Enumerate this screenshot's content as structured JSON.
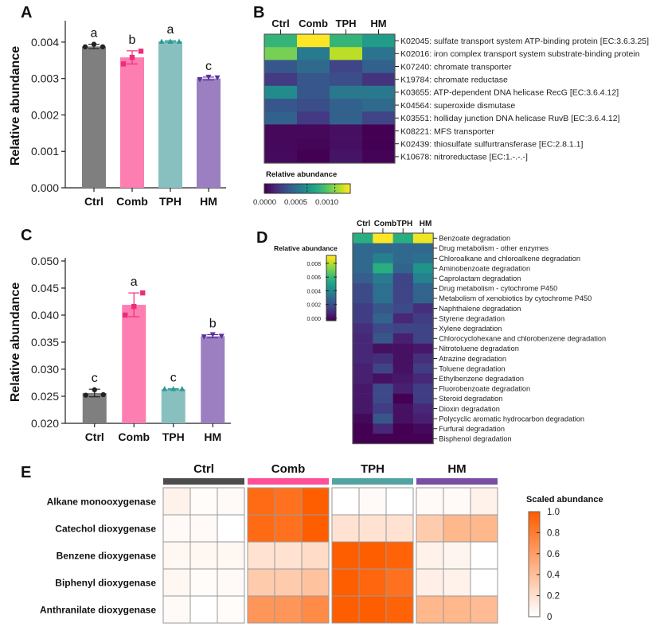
{
  "chart_data": [
    {
      "panel": "A",
      "type": "bar",
      "ylabel": "Relative abundance",
      "xlabel": "",
      "ylim": [
        0,
        0.0045
      ],
      "yticks": [
        "0.000",
        "0.001",
        "0.002",
        "0.003",
        "0.004"
      ],
      "ytick_values": [
        0,
        0.001,
        0.002,
        0.003,
        0.004
      ],
      "categories": [
        "Ctrl",
        "Comb",
        "TPH",
        "HM"
      ],
      "values": [
        0.00388,
        0.00358,
        0.00402,
        0.003
      ],
      "error": [
        6e-05,
        0.00018,
        2e-05,
        4e-05
      ],
      "points": [
        [
          0.00387,
          0.00394,
          0.00387
        ],
        [
          0.0034,
          0.00358,
          0.00375
        ],
        [
          0.00402,
          0.00402,
          0.00402
        ],
        [
          0.00297,
          0.00304,
          0.00302
        ]
      ],
      "letters": [
        "a",
        "b",
        "a",
        "c"
      ],
      "colors": [
        "#7f7f7f",
        "#fd7eb0",
        "#88c0c0",
        "#9b7fc0"
      ],
      "marker_colors": [
        "#222222",
        "#ef2c7c",
        "#2e9a95",
        "#5b2f9e"
      ],
      "markers": [
        "circle",
        "square",
        "triangle-up",
        "triangle-down"
      ],
      "grid": false
    },
    {
      "panel": "B",
      "type": "heatmap",
      "columns": [
        "Ctrl",
        "Comb",
        "TPH",
        "HM"
      ],
      "rows": [
        "K02045: sulfate transport system ATP-binding protein [EC:3.6.3.25]",
        "K02016: iron complex transport system substrate-binding protein",
        "K07240: chromate transporter",
        "K19784: chromate reductase",
        "K03655: ATP-dependent DNA helicase RecG [EC:3.6.4.12]",
        "K04564: superoxide dismutase",
        "K03551: holliday junction DNA helicase RuvB [EC:3.6.4.12]",
        "K08221: MFS transporter",
        "K02439: thiosulfate sulfurtransferase [EC:2.8.1.1]",
        "K10678: nitroreductase [EC:1.-.-.-]"
      ],
      "values": [
        [
          0.00095,
          0.00145,
          0.00095,
          0.0008
        ],
        [
          0.00115,
          0.0006,
          0.0013,
          0.00055
        ],
        [
          0.0004,
          0.0005,
          0.0003,
          0.00045
        ],
        [
          0.00025,
          0.0004,
          0.00035,
          0.00022
        ],
        [
          0.0007,
          0.0004,
          0.00058,
          0.00058
        ],
        [
          0.0004,
          0.00035,
          0.00045,
          0.0005
        ],
        [
          0.00045,
          0.00025,
          0.00045,
          0.0003
        ],
        [
          3e-05,
          3e-05,
          6e-05,
          0.0
        ],
        [
          3e-05,
          2e-05,
          6e-05,
          0.0
        ],
        [
          4e-05,
          0.0,
          8e-05,
          1e-05
        ]
      ],
      "colorbar": {
        "title": "Relative abundance",
        "range": [
          0,
          0.00145
        ],
        "ticks": [
          "0.0000",
          "0.0005",
          "0.0010"
        ],
        "tick_values": [
          0,
          0.0005,
          0.001
        ],
        "colormap": "viridis",
        "orientation": "horizontal"
      }
    },
    {
      "panel": "C",
      "type": "bar",
      "ylabel": "Relative abundance",
      "xlabel": "",
      "ylim": [
        0.02,
        0.05
      ],
      "yticks": [
        "0.020",
        "0.025",
        "0.030",
        "0.035",
        "0.040",
        "0.045",
        "0.050"
      ],
      "ytick_values": [
        0.02,
        0.025,
        0.03,
        0.035,
        0.04,
        0.045,
        0.05
      ],
      "categories": [
        "Ctrl",
        "Comb",
        "TPH",
        "HM"
      ],
      "values": [
        0.0256,
        0.0419,
        0.0263,
        0.0361
      ],
      "error": [
        0.0007,
        0.0022,
        0.0001,
        0.0003
      ],
      "points": [
        [
          0.0252,
          0.0262,
          0.0253
        ],
        [
          0.04,
          0.0416,
          0.0441
        ],
        [
          0.0264,
          0.0264,
          0.0264
        ],
        [
          0.036,
          0.0364,
          0.0361
        ]
      ],
      "letters": [
        "c",
        "a",
        "c",
        "b"
      ],
      "colors": [
        "#7f7f7f",
        "#fd7eb0",
        "#88c0c0",
        "#9b7fc0"
      ],
      "marker_colors": [
        "#222222",
        "#ef2c7c",
        "#2e9a95",
        "#5b2f9e"
      ],
      "markers": [
        "circle",
        "square",
        "triangle-up",
        "triangle-down"
      ],
      "grid": false
    },
    {
      "panel": "D",
      "type": "heatmap",
      "columns": [
        "Ctrl",
        "Comb",
        "TPH",
        "HM"
      ],
      "rows": [
        "Benzoate degradation",
        "Drug metabolism - other enzymes",
        "Chloroalkane and chloroalkene degradation",
        "Aminobenzoate degradation",
        "Caprolactam degradation",
        "Drug metabolism - cytochrome P450",
        "Metabolism of xenobiotics by cytochrome P450",
        "Naphthalene degradation",
        "Styrene degradation",
        "Xylene degradation",
        "Chlorocyclohexane and chlorobenzene degradation",
        "Nitrotoluene degradation",
        "Atrazine degradation",
        "Toluene degradation",
        "Ethylbenzene degradation",
        "Fluorobenzoate degradation",
        "Steroid degradation",
        "Dioxin degradation",
        "Polycyclic aromatic hydrocarbon degradation",
        "Furfural degradation",
        "Bisphenol degradation"
      ],
      "values": [
        [
          0.0055,
          0.0088,
          0.0055,
          0.0086
        ],
        [
          0.003,
          0.003,
          0.003,
          0.003
        ],
        [
          0.003,
          0.0038,
          0.003,
          0.0032
        ],
        [
          0.003,
          0.0055,
          0.0028,
          0.0045
        ],
        [
          0.0026,
          0.0036,
          0.0018,
          0.0038
        ],
        [
          0.002,
          0.0032,
          0.0018,
          0.0028
        ],
        [
          0.002,
          0.0032,
          0.0018,
          0.0028
        ],
        [
          0.0016,
          0.0024,
          0.002,
          0.0012
        ],
        [
          0.0016,
          0.0028,
          0.001,
          0.0016
        ],
        [
          0.0012,
          0.002,
          0.0018,
          0.0018
        ],
        [
          0.001,
          0.0024,
          0.0008,
          0.0018
        ],
        [
          0.001,
          0.0004,
          0.0004,
          0.0006
        ],
        [
          0.001,
          0.0012,
          0.0004,
          0.0012
        ],
        [
          0.0008,
          0.0018,
          0.0004,
          0.0016
        ],
        [
          0.0008,
          0.0004,
          0.0006,
          0.001
        ],
        [
          0.0006,
          0.002,
          0.0008,
          0.0016
        ],
        [
          0.0006,
          0.002,
          0.0,
          0.0016
        ],
        [
          0.0006,
          0.0016,
          0.0004,
          0.001
        ],
        [
          0.0002,
          0.0024,
          0.0004,
          0.0008
        ],
        [
          0.0,
          0.001,
          0.0,
          0.0002
        ],
        [
          0.0,
          0.0,
          0.0,
          0.0
        ]
      ],
      "colorbar": {
        "title": "Relative abundance",
        "range": [
          0,
          0.0088
        ],
        "ticks": [
          "0.000",
          "0.002",
          "0.004",
          "0.006",
          "0.008"
        ],
        "tick_values": [
          0,
          0.002,
          0.004,
          0.006,
          0.008
        ],
        "colormap": "viridis",
        "orientation": "vertical"
      }
    },
    {
      "panel": "E",
      "type": "heatmap",
      "groups": [
        {
          "name": "Ctrl",
          "color": "#4d4d4d"
        },
        {
          "name": "Comb",
          "color": "#ff4f98"
        },
        {
          "name": "TPH",
          "color": "#54a3a3"
        },
        {
          "name": "HM",
          "color": "#7a4fa3"
        }
      ],
      "replicates_per_group": 3,
      "rows": [
        "Alkane monooxygenase",
        "Catechol dioxygenase",
        "Benzene dioxygenase",
        "Biphenyl dioxygenase",
        "Anthranilate dioxygenase"
      ],
      "values": [
        [
          0.08,
          0.02,
          0.03,
          0.92,
          0.88,
          1.0,
          0.0,
          0.03,
          0.0,
          0.03,
          0.03,
          0.08
        ],
        [
          0.03,
          0.03,
          0.0,
          0.92,
          0.88,
          1.0,
          0.18,
          0.18,
          0.18,
          0.32,
          0.45,
          0.45
        ],
        [
          0.05,
          0.05,
          0.05,
          0.18,
          0.18,
          0.22,
          1.0,
          1.0,
          0.97,
          0.08,
          0.06,
          0.0
        ],
        [
          0.05,
          0.02,
          0.03,
          0.32,
          0.32,
          0.38,
          1.0,
          0.95,
          0.88,
          0.1,
          0.08,
          0.0
        ],
        [
          0.03,
          0.0,
          0.02,
          0.65,
          0.65,
          0.72,
          1.0,
          1.0,
          0.97,
          0.45,
          0.45,
          0.42
        ]
      ],
      "colorbar": {
        "title": "Scaled abundance",
        "range": [
          0,
          1
        ],
        "ticks": [
          "0",
          "0.2",
          "0.4",
          "0.6",
          "0.8",
          "1.0"
        ],
        "tick_values": [
          0,
          0.2,
          0.4,
          0.6,
          0.8,
          1.0
        ],
        "colormap": "white-orange",
        "low_color": "#ffffff",
        "high_color": "#ff5e00"
      }
    }
  ]
}
